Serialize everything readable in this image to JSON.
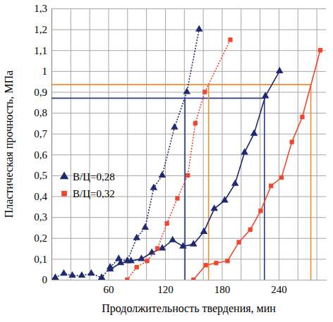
{
  "chart_data": {
    "type": "line",
    "x_label": "Продолжительность твердения, мин",
    "y_label": "Пластическая прочность, МПа",
    "xlim": [
      0,
      290
    ],
    "ylim": [
      0,
      1.3
    ],
    "xticks": [
      {
        "value": 20,
        "label": null
      },
      {
        "value": 40,
        "label": null
      },
      60,
      {
        "value": 80,
        "label": null
      },
      {
        "value": 100,
        "label": null
      },
      120,
      {
        "value": 140,
        "label": null
      },
      {
        "value": 160,
        "label": null
      },
      180,
      {
        "value": 200,
        "label": null
      },
      {
        "value": 220,
        "label": null
      },
      240,
      {
        "value": 260,
        "label": null
      },
      {
        "value": 280,
        "label": null
      }
    ],
    "yticks": [
      0,
      {
        "value": 0.1,
        "label": "0,1"
      },
      {
        "value": 0.2,
        "label": "0,2"
      },
      {
        "value": 0.3,
        "label": "0,3"
      },
      {
        "value": 0.4,
        "label": "0,4"
      },
      {
        "value": 0.5,
        "label": "0,5"
      },
      {
        "value": 0.6,
        "label": "0,6"
      },
      {
        "value": 0.7,
        "label": "0,7"
      },
      {
        "value": 0.8,
        "label": "0,8"
      },
      {
        "value": 0.9,
        "label": "0,9"
      },
      1,
      {
        "value": 1.1,
        "label": "1,1"
      },
      {
        "value": 1.2,
        "label": "1,2"
      },
      {
        "value": 1.3,
        "label": "1,3"
      }
    ],
    "grid": true,
    "legend": "left",
    "series": [
      {
        "name": "В/Ц=0,28",
        "color": "#1f2a6e",
        "marker": "triangle",
        "line_style": "dotted",
        "x": [
          4,
          13,
          22,
          32,
          42,
          53,
          62,
          71,
          80,
          90,
          99,
          108,
          117,
          130,
          143,
          156
        ],
        "values": [
          0.01,
          0.03,
          0.02,
          0.02,
          0.03,
          0.01,
          0.06,
          0.1,
          0.09,
          0.2,
          0.25,
          0.44,
          0.5,
          0.73,
          0.9,
          1.2
        ]
      },
      {
        "color": "#1f2a6e",
        "marker": "triangle",
        "line_style": "solid",
        "x": [
          62,
          73,
          84,
          95,
          106,
          117,
          128,
          139,
          150,
          161,
          172,
          183,
          194,
          204,
          214,
          226,
          241
        ],
        "values": [
          0.05,
          0.08,
          0.09,
          0.1,
          0.13,
          0.15,
          0.19,
          0.16,
          0.17,
          0.23,
          0.34,
          0.38,
          0.46,
          0.61,
          0.7,
          0.88,
          1.0
        ]
      },
      {
        "name": "В/Ц=0,32",
        "color": "#f0462d",
        "marker": "square",
        "line_style": "dotted",
        "x": [
          80,
          90,
          101,
          112,
          122,
          133,
          144,
          152,
          162,
          189
        ],
        "values": [
          0,
          0.06,
          0.09,
          0.15,
          0.27,
          0.39,
          0.5,
          0.75,
          0.9,
          1.15
        ]
      },
      {
        "color": "#f0462d",
        "marker": "square",
        "line_style": "solid",
        "x": [
          150,
          163,
          174,
          186,
          198,
          210,
          221,
          232,
          243,
          254,
          265,
          284
        ],
        "values": [
          0,
          0.07,
          0.08,
          0.09,
          0.18,
          0.24,
          0.33,
          0.45,
          0.49,
          0.66,
          0.78,
          1.1
        ]
      }
    ],
    "reference_lines": [
      {
        "color": "#2e3b8c",
        "y": 0.87,
        "x": [
          141,
          225
        ]
      },
      {
        "color": "#f08c2a",
        "y": 0.935,
        "x": [
          166,
          274
        ]
      }
    ]
  }
}
